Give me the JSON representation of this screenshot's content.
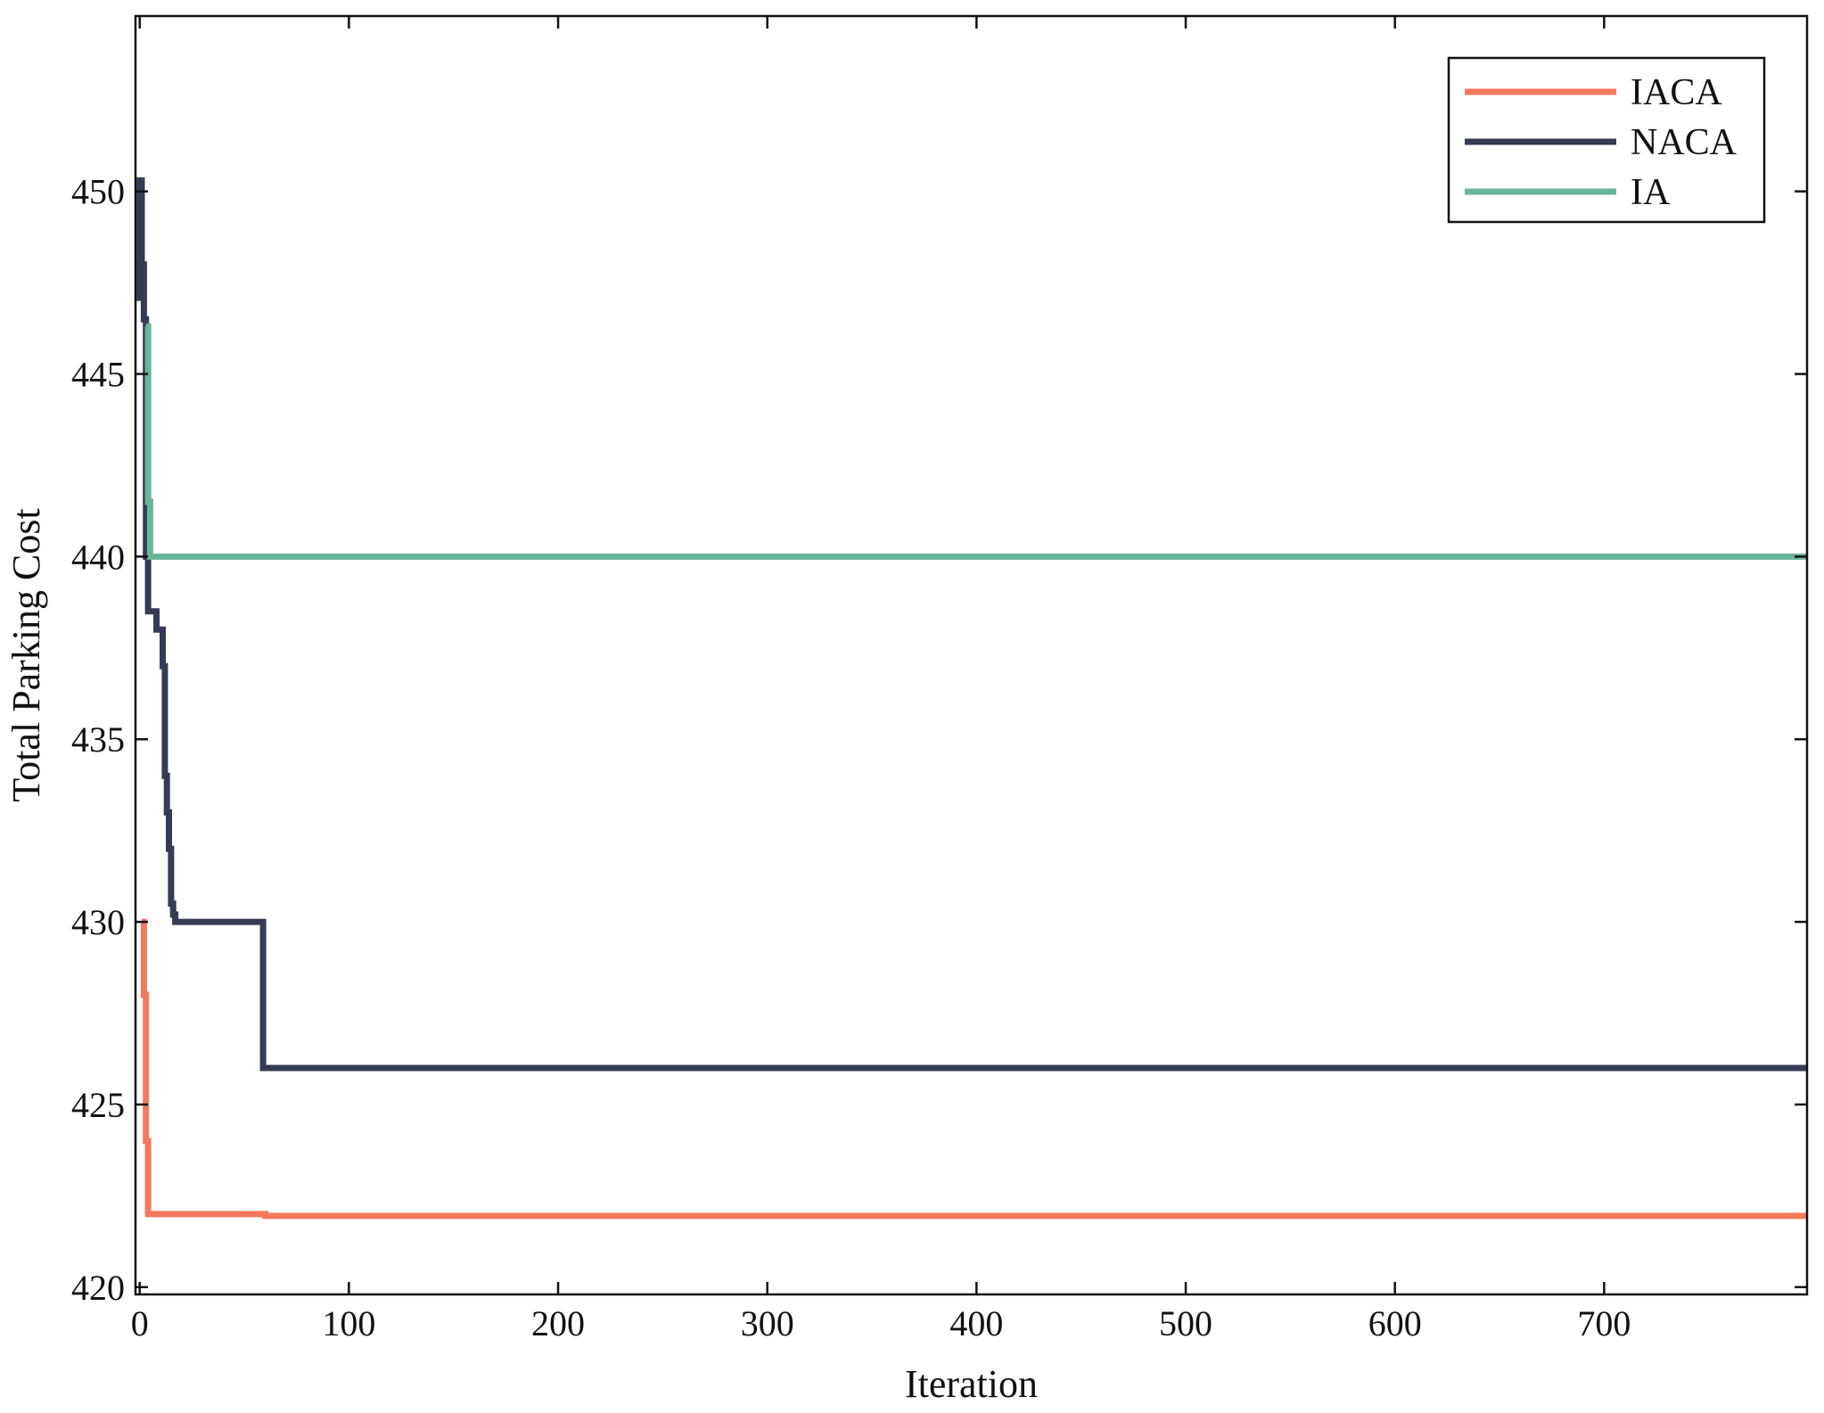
{
  "chart_data": {
    "type": "line",
    "title": "",
    "xlabel": "Iteration",
    "ylabel": "Total Parking Cost",
    "xlim": [
      -2,
      797
    ],
    "ylim": [
      419.8,
      454.8
    ],
    "xticks": [
      0,
      100,
      200,
      300,
      400,
      500,
      600,
      700
    ],
    "yticks": [
      420,
      425,
      430,
      435,
      440,
      445,
      450
    ],
    "grid": false,
    "legend_position": "top-right",
    "series": [
      {
        "name": "IACA",
        "color": "#F4795C",
        "x": [
          1,
          2,
          2,
          3,
          3,
          4,
          4,
          60,
          60,
          797
        ],
        "y": [
          430.0,
          430.0,
          428.0,
          428.0,
          424.0,
          424.0,
          422.0,
          422.0,
          421.95,
          421.95
        ]
      },
      {
        "name": "NACA",
        "color": "#363B55",
        "x": [
          0,
          0,
          1,
          1,
          2,
          2,
          3,
          3,
          4,
          4,
          8,
          8,
          11,
          11,
          12,
          12,
          13,
          13,
          14,
          14,
          15,
          15,
          16,
          16,
          17,
          17,
          19,
          19,
          59,
          59,
          797
        ],
        "y": [
          447.0,
          450.3,
          450.3,
          448.0,
          448.0,
          446.5,
          446.5,
          440.0,
          440.0,
          438.5,
          438.5,
          438.0,
          438.0,
          437.0,
          437.0,
          434.0,
          434.0,
          433.0,
          433.0,
          432.0,
          432.0,
          430.5,
          430.5,
          430.2,
          430.2,
          430.0,
          430.0,
          430.0,
          430.0,
          426.0,
          426.0
        ]
      },
      {
        "name": "IA",
        "color": "#68B59A",
        "x": [
          3,
          4,
          4,
          5,
          5,
          797
        ],
        "y": [
          446.3,
          446.3,
          441.5,
          441.5,
          440.0,
          440.0
        ]
      }
    ]
  }
}
